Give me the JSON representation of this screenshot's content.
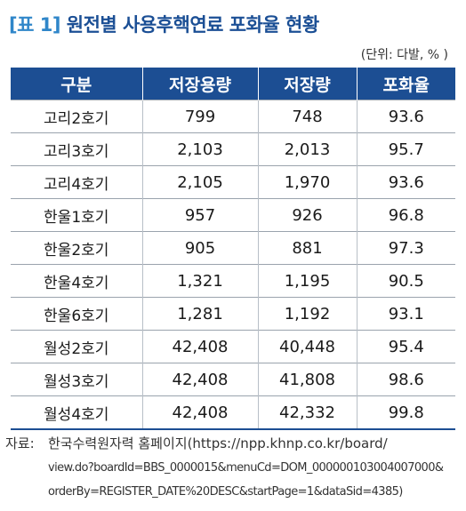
{
  "title": {
    "label": "[표 1]",
    "text": "원전별 사용후핵연료 포화율 현황"
  },
  "unit": "(단위: 다발, % )",
  "table": {
    "headers": [
      "구분",
      "저장용량",
      "저장량",
      "포화율"
    ],
    "rows": [
      [
        "고리2호기",
        "799",
        "748",
        "93.6"
      ],
      [
        "고리3호기",
        "2,103",
        "2,013",
        "95.7"
      ],
      [
        "고리4호기",
        "2,105",
        "1,970",
        "93.6"
      ],
      [
        "한울1호기",
        "957",
        "926",
        "96.8"
      ],
      [
        "한울2호기",
        "905",
        "881",
        "97.3"
      ],
      [
        "한울4호기",
        "1,321",
        "1,195",
        "90.5"
      ],
      [
        "한울6호기",
        "1,281",
        "1,192",
        "93.1"
      ],
      [
        "월성2호기",
        "42,408",
        "40,448",
        "95.4"
      ],
      [
        "월성3호기",
        "42,408",
        "41,808",
        "98.6"
      ],
      [
        "월성4호기",
        "42,408",
        "42,332",
        "99.8"
      ]
    ]
  },
  "source": {
    "label": "자료:",
    "line1": "한국수력원자력 홈페이지(https://npp.khnp.co.kr/board/",
    "line2": "view.do?boardId=BBS_0000015&menuCd=DOM_000000103004007000&",
    "line3": "orderBy=REGISTER_DATE%20DESC&startPage=1&dataSid=4385)"
  }
}
